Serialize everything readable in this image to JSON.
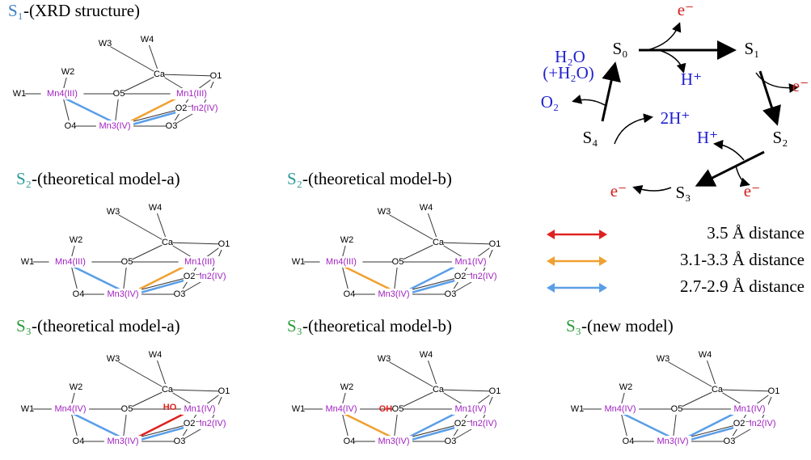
{
  "panels": [
    {
      "state": "S₁",
      "label": "-(XRD structure)",
      "state_color": "#3a7fc0",
      "atoms": [
        "W1",
        "W2",
        "W3",
        "W4",
        "Mn4(III)",
        "Mn1(III)",
        "Mn2(IV)",
        "Mn3(IV)",
        "O1",
        "O2⁻",
        "O3",
        "O4",
        "O5",
        "Ca"
      ]
    },
    {
      "state": "S₂",
      "label": "-(theoretical model-a)",
      "state_color": "#2a9a9a",
      "atoms": [
        "W1",
        "W2",
        "W3",
        "W4",
        "Mn4(III)",
        "Mn1(III)",
        "Mn2(IV)",
        "Mn3(IV)",
        "O1",
        "O2⁻",
        "O3",
        "O4",
        "O5",
        "Ca"
      ]
    },
    {
      "state": "S₂",
      "label": "-(theoretical model-b)",
      "state_color": "#2a9a9a",
      "atoms": [
        "W1",
        "W2",
        "W3",
        "W4",
        "Mn4(III)",
        "Mn1(IV)",
        "Mn2(IV)",
        "Mn3(IV)",
        "O1",
        "O2⁻",
        "O3",
        "O4",
        "O5",
        "Ca"
      ]
    },
    {
      "state": "S₃",
      "label": "-(theoretical model-a)",
      "state_color": "#2a9a3a",
      "atoms": [
        "W1",
        "W2",
        "W3",
        "W4",
        "Mn4(IV)",
        "Mn1(IV)",
        "Mn2(IV)",
        "Mn3(IV)",
        "O1",
        "O2⁻",
        "O3",
        "O4",
        "O5",
        "Ca"
      ],
      "extra": "HO"
    },
    {
      "state": "S₃",
      "label": "-(theoretical model-b)",
      "state_color": "#2a9a3a",
      "atoms": [
        "W1",
        "W2",
        "W3",
        "W4",
        "Mn4(IV)",
        "Mn1(IV)",
        "Mn2(IV)",
        "Mn3(IV)",
        "O1",
        "O2⁻",
        "O3",
        "O4",
        "O5",
        "Ca"
      ],
      "extra": "OH"
    },
    {
      "state": "S₃",
      "label": "-(new model)",
      "state_color": "#2a9a3a",
      "atoms": [
        "W1",
        "W2",
        "W3",
        "W4",
        "Mn4(IV)",
        "Mn1(IV)",
        "Mn2(IV)",
        "Mn3(IV)",
        "O1",
        "O2⁻",
        "O3",
        "O4",
        "O5",
        "Ca"
      ]
    }
  ],
  "cycle": {
    "states": [
      "S₀",
      "S₁",
      "S₂",
      "S₃",
      "S₄"
    ],
    "labels": [
      "e⁻",
      "H⁺",
      "H₂O",
      "(+H₂O)",
      "O₂",
      "2H⁺",
      "e⁻",
      "H⁺",
      "e⁻",
      "e⁻"
    ]
  },
  "legend": [
    {
      "label": "3.5 Å distance",
      "color": "#e02020"
    },
    {
      "label": "3.1-3.3 Å distance",
      "color": "#f0a030"
    },
    {
      "label": "2.7-2.9 Å distance",
      "color": "#5a9ee8"
    }
  ]
}
